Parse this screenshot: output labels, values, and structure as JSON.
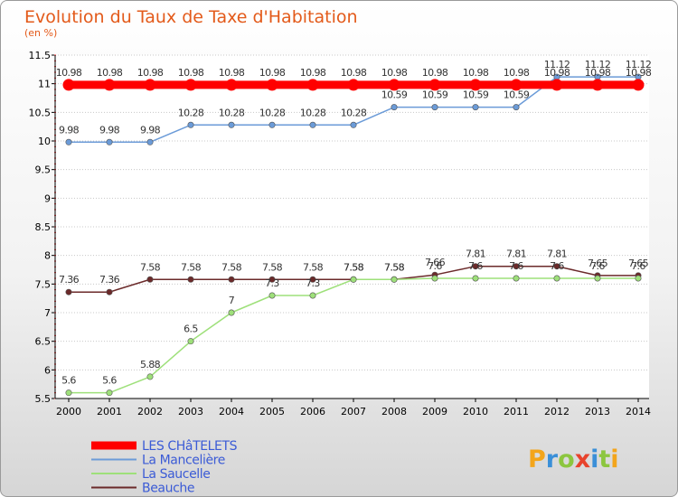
{
  "chart_data": {
    "type": "line",
    "title": "Evolution du Taux de Taxe d'Habitation",
    "subtitle": "(en %)",
    "x": [
      "2000",
      "2001",
      "2002",
      "2003",
      "2004",
      "2005",
      "2006",
      "2007",
      "2008",
      "2009",
      "2010",
      "2011",
      "2012",
      "2013",
      "2014"
    ],
    "yticks": [
      "5.5",
      "6",
      "6.5",
      "7",
      "7.5",
      "8",
      "8.5",
      "9",
      "9.5",
      "10",
      "10.5",
      "11",
      "11.5"
    ],
    "ylim": [
      5.5,
      11.5
    ],
    "grid": "horizontal",
    "legend_position": "bottom-left",
    "series": [
      {
        "name": "LES CHâTELETS",
        "color": "#ff0000",
        "values": [
          10.98,
          10.98,
          10.98,
          10.98,
          10.98,
          10.98,
          10.98,
          10.98,
          10.98,
          10.98,
          10.98,
          10.98,
          10.98,
          10.98,
          10.98
        ]
      },
      {
        "name": "La Mancelière",
        "color": "#6b9bd8",
        "values": [
          9.98,
          9.98,
          9.98,
          10.28,
          10.28,
          10.28,
          10.28,
          10.28,
          10.59,
          10.59,
          10.59,
          10.59,
          11.12,
          11.12,
          11.12
        ]
      },
      {
        "name": "La Saucelle",
        "color": "#9ee07a",
        "values": [
          5.6,
          5.6,
          5.88,
          6.5,
          7,
          7.3,
          7.3,
          7.58,
          7.58,
          7.6,
          7.6,
          7.6,
          7.6,
          7.6,
          7.6
        ]
      },
      {
        "name": "Beauche",
        "color": "#6b2a2a",
        "values": [
          7.36,
          7.36,
          7.58,
          7.58,
          7.58,
          7.58,
          7.58,
          7.58,
          7.58,
          7.66,
          7.81,
          7.81,
          7.81,
          7.65,
          7.65
        ]
      }
    ]
  },
  "branding": {
    "letters": [
      "P",
      "r",
      "o",
      "x",
      "i",
      "t",
      "i"
    ],
    "colors": [
      "#f3a51b",
      "#3a8fd8",
      "#8cc63f",
      "#e8432c",
      "#3a8fd8",
      "#8cc63f",
      "#f3a51b"
    ]
  }
}
